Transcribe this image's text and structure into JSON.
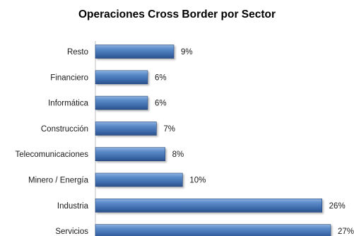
{
  "chart_data": {
    "type": "bar",
    "orientation": "horizontal",
    "title": "Operaciones Cross Border por Sector",
    "xlabel": "",
    "ylabel": "",
    "categories": [
      "Resto",
      "Financiero",
      "Informática",
      "Construcción",
      "Telecomunicaciones",
      "Minero / Energía",
      "Industria",
      "Servicios"
    ],
    "values": [
      9,
      6,
      6,
      7,
      8,
      10,
      26,
      27
    ],
    "value_labels": [
      "9%",
      "6%",
      "6%",
      "7%",
      "8%",
      "10%",
      "26%",
      "27%"
    ],
    "unit": "%",
    "xlim": [
      0,
      27
    ],
    "grid": false,
    "legend": "none",
    "colors": {
      "bar_light": "#6f9bd2",
      "bar_mid": "#3f6fb0",
      "bar_dark": "#274f86",
      "bar_border": "#23457a",
      "text": "#1a1a1a",
      "axis": "#bfbfbf"
    }
  }
}
